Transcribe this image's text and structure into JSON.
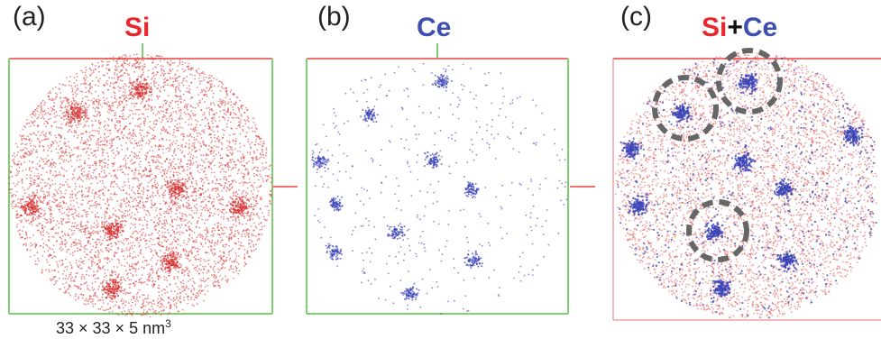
{
  "panels": [
    {
      "label": "(a)",
      "title": "Si",
      "title_color": "#e8262c"
    },
    {
      "label": "(b)",
      "title": "Ce",
      "title_color": "#3d4fb0"
    },
    {
      "label": "(c)",
      "title_parts": [
        "Si",
        "+",
        "Ce"
      ],
      "title_colors": [
        "#e8262c",
        "#111111",
        "#3d4fb0"
      ]
    }
  ],
  "scale_text": "33 × 33 × 5 nm",
  "scale_exponent": "3",
  "colors": {
    "si": "#d42b2b",
    "ce": "#3b45b8",
    "frame_green": "#7dcf6f",
    "frame_red": "#f07070",
    "circle": "#666666"
  }
}
